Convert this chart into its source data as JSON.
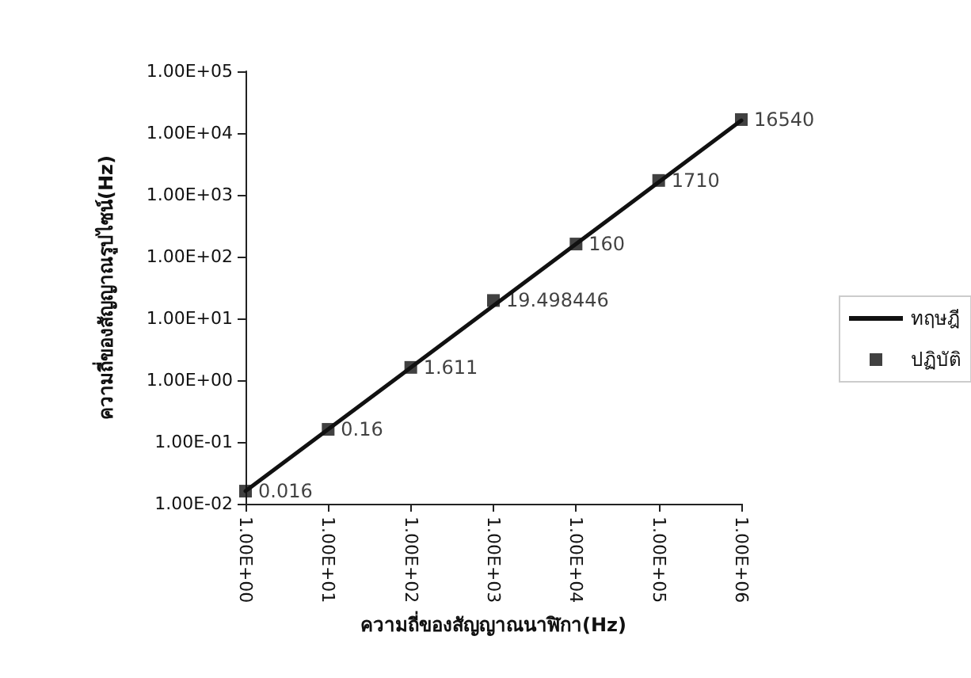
{
  "chart_data": {
    "type": "line",
    "xlabel": "ความถี่ของสัญญาณนาฬิกา(Hz)",
    "ylabel": "ความถี่ของสัญญาณรูปไซน์(Hz)",
    "x": [
      1,
      10,
      100,
      1000,
      10000,
      100000,
      1000000
    ],
    "series": [
      {
        "name": "ทฤษฎี",
        "color": "#111111",
        "values": [
          0.016,
          0.16,
          1.6,
          16,
          160,
          1600,
          16000
        ]
      },
      {
        "name": "ปฏิบัติ",
        "type": "scatter",
        "marker": "square",
        "color": "#111111",
        "values": [
          0.016,
          0.16,
          1.611,
          19.498446,
          160,
          1710,
          16540
        ],
        "value_labels": [
          "0.016",
          "0.16",
          "1.611",
          "19.498446",
          "160",
          "1710",
          "16540"
        ]
      }
    ],
    "log": "xy",
    "xlim": [
      1,
      1000000
    ],
    "ylim": [
      0.01,
      100000
    ],
    "xticks": [
      {
        "value": 1,
        "label": "1.00E+00"
      },
      {
        "value": 10,
        "label": "1.00E+01"
      },
      {
        "value": 100,
        "label": "1.00E+02"
      },
      {
        "value": 1000,
        "label": "1.00E+03"
      },
      {
        "value": 10000,
        "label": "1.00E+04"
      },
      {
        "value": 100000,
        "label": "1.00E+05"
      },
      {
        "value": 1000000,
        "label": "1.00E+06"
      }
    ],
    "yticks": [
      {
        "value": 0.01,
        "label": "1.00E-02"
      },
      {
        "value": 0.1,
        "label": "1.00E-01"
      },
      {
        "value": 1,
        "label": "1.00E+00"
      },
      {
        "value": 10,
        "label": "1.00E+01"
      },
      {
        "value": 100,
        "label": "1.00E+02"
      },
      {
        "value": 1000,
        "label": "1.00E+03"
      },
      {
        "value": 10000,
        "label": "1.00E+04"
      },
      {
        "value": 100000,
        "label": "1.00E+05"
      }
    ],
    "line_style": "solid",
    "grid": false,
    "legend": "right"
  }
}
